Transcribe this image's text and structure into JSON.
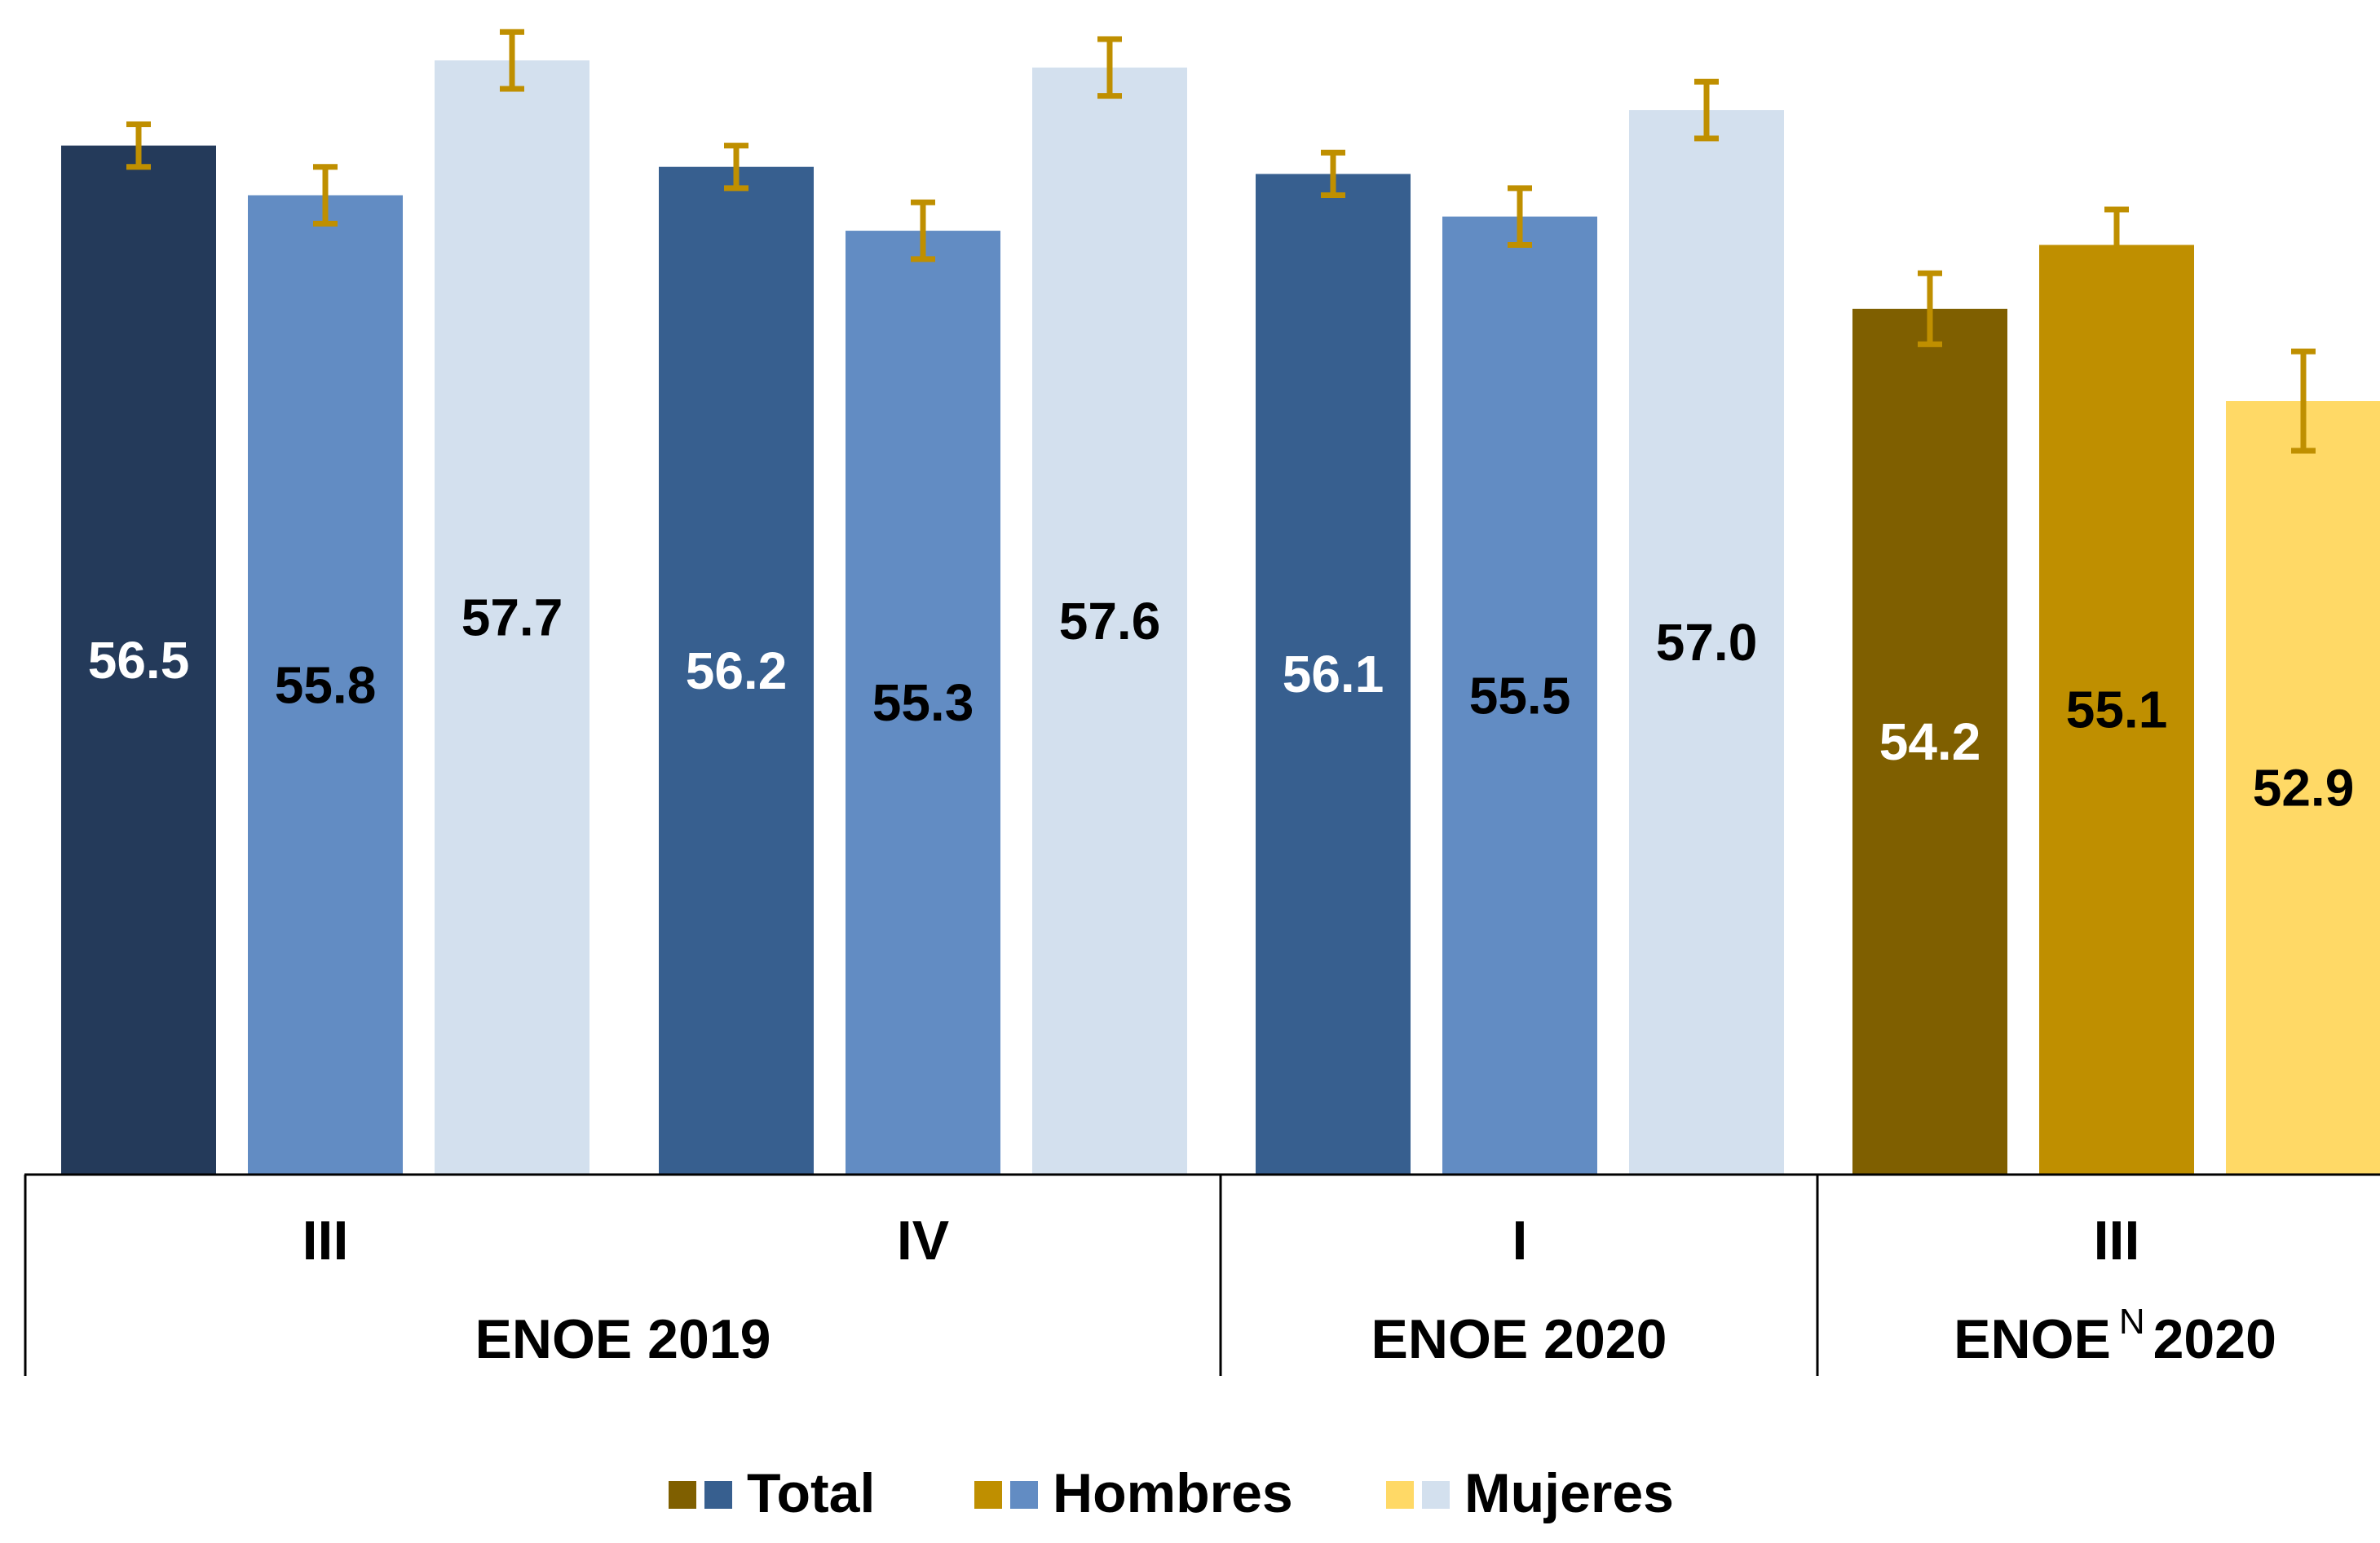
{
  "chart_data": {
    "type": "bar",
    "categories": [
      {
        "quarter": "III",
        "survey": "ENOE 2019"
      },
      {
        "quarter": "IV",
        "survey": "ENOE 2019"
      },
      {
        "quarter": "I",
        "survey": "ENOE 2020"
      },
      {
        "quarter": "III",
        "survey": "ENOE N 2020"
      }
    ],
    "groups": [
      {
        "label": "ENOE 2019",
        "superscript": ""
      },
      {
        "label_before": "ENOE",
        "superscript": "N",
        "label_after": "2020"
      }
    ],
    "group_labels": [
      "ENOE 2019",
      "ENOE 2020"
    ],
    "series": [
      {
        "name": "Total",
        "values": [
          56.5,
          56.2,
          56.1,
          54.2
        ]
      },
      {
        "name": "Hombres",
        "values": [
          55.8,
          55.3,
          55.5,
          55.1
        ]
      },
      {
        "name": "Mujeres",
        "values": [
          57.7,
          57.6,
          57.0,
          52.9
        ]
      }
    ],
    "error_bars": {
      "Total": [
        [
          56.2,
          56.8
        ],
        [
          55.9,
          56.5
        ],
        [
          55.8,
          56.4
        ],
        [
          53.7,
          54.7
        ]
      ],
      "Hombres": [
        [
          55.4,
          56.2
        ],
        [
          54.9,
          55.7
        ],
        [
          55.1,
          55.9
        ],
        [
          54.6,
          55.6
        ]
      ],
      "Mujeres": [
        [
          57.3,
          58.1
        ],
        [
          57.2,
          58.0
        ],
        [
          56.6,
          57.4
        ],
        [
          52.2,
          53.6
        ]
      ]
    },
    "ylim": [
      42.0,
      58.2
    ],
    "grid": false,
    "legend_position": "bottom",
    "colors": {
      "Total": [
        "#243a5a",
        "#375f8f",
        "#375f8f",
        "#7f5f00"
      ],
      "Hombres": [
        "#628cc3",
        "#628cc3",
        "#628cc3",
        "#bf8f00"
      ],
      "Mujeres": [
        "#d3e0ee",
        "#d3e0ee",
        "#d3e0ee",
        "#ffd966"
      ],
      "label_text": {
        "Total": [
          "#ffffff",
          "#ffffff",
          "#ffffff",
          "#ffffff"
        ],
        "Hombres": [
          "#000000",
          "#000000",
          "#000000",
          "#000000"
        ],
        "Mujeres": [
          "#000000",
          "#000000",
          "#000000",
          "#000000"
        ]
      },
      "error_bar": "#bf8f00"
    },
    "legend": [
      {
        "name": "Total",
        "swatches": [
          "#7f5f00",
          "#375f8f"
        ]
      },
      {
        "name": "Hombres",
        "swatches": [
          "#bf8f00",
          "#628cc3"
        ]
      },
      {
        "name": "Mujeres",
        "swatches": [
          "#ffd966",
          "#d3e0ee"
        ]
      }
    ]
  }
}
